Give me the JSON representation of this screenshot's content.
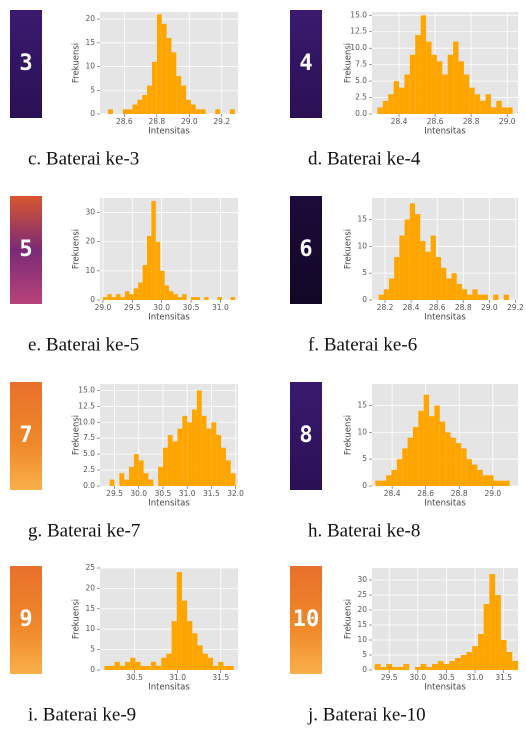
{
  "chart_data": [
    {
      "type": "histogram",
      "caption": "c. Baterai ke-3",
      "image_label": "3",
      "xlabel": "Intensitas",
      "ylabel": "Frekuensi",
      "color": "#ffa500",
      "grid": true,
      "xlim": [
        28.45,
        29.3
      ],
      "xticks": [
        28.6,
        28.8,
        {
          "value": 29.0,
          "label": "29.0"
        },
        29.2
      ],
      "ylim": [
        0,
        21.5
      ],
      "yticks": [
        0,
        5,
        10,
        15,
        20
      ],
      "bins": [
        28.5,
        28.53,
        28.56,
        28.59,
        28.62,
        28.65,
        28.68,
        28.71,
        28.74,
        28.77,
        28.8,
        28.83,
        28.86,
        28.89,
        28.92,
        28.95,
        28.98,
        29.01,
        29.04,
        29.07,
        29.1,
        29.13,
        29.16,
        29.19,
        29.22,
        29.25,
        29.28
      ],
      "values": [
        1,
        0,
        0,
        1,
        1,
        2,
        3,
        4,
        6,
        11,
        21,
        19,
        16,
        13,
        8,
        6,
        3,
        2,
        1,
        1,
        0,
        0,
        1,
        0,
        0,
        1
      ]
    },
    {
      "type": "histogram",
      "caption": "d. Baterai ke-4",
      "image_label": "4",
      "xlabel": "Intensitas",
      "ylabel": "Frekuensi",
      "color": "#ffa500",
      "grid": true,
      "xlim": [
        28.25,
        29.06
      ],
      "xticks": [
        28.4,
        28.6,
        28.8,
        {
          "value": 29.0,
          "label": "29.0"
        }
      ],
      "ylim": [
        0,
        15.5
      ],
      "yticks": [
        {
          "value": 0,
          "label": "0.0"
        },
        2.5,
        {
          "value": 5,
          "label": "5.0"
        },
        7.5,
        {
          "value": 10,
          "label": "10.0"
        },
        12.5,
        {
          "value": 15,
          "label": "15.0"
        }
      ],
      "bins": [
        28.28,
        28.31,
        28.34,
        28.37,
        28.4,
        28.43,
        28.46,
        28.49,
        28.52,
        28.55,
        28.58,
        28.61,
        28.64,
        28.67,
        28.7,
        28.73,
        28.76,
        28.79,
        28.82,
        28.85,
        28.88,
        28.91,
        28.94,
        28.97,
        29.0,
        29.03
      ],
      "values": [
        1,
        2,
        3,
        5,
        4,
        6,
        9,
        12,
        15,
        11,
        9,
        8,
        6,
        9,
        11,
        8,
        6,
        4,
        3,
        2,
        3,
        1,
        2,
        1,
        1
      ]
    },
    {
      "type": "histogram",
      "caption": "e. Baterai ke-5",
      "image_label": "5",
      "xlabel": "Intensitas",
      "ylabel": "Frekuensi",
      "color": "#ffa500",
      "grid": true,
      "xlim": [
        28.95,
        31.3
      ],
      "xticks": [
        {
          "value": 29.0,
          "label": "29.0"
        },
        29.5,
        {
          "value": 30.0,
          "label": "30.0"
        },
        30.5,
        {
          "value": 31.0,
          "label": "31.0"
        }
      ],
      "ylim": [
        0,
        35
      ],
      "yticks": [
        0,
        10,
        20,
        30
      ],
      "bins": [
        29.0,
        29.075,
        29.15,
        29.225,
        29.3,
        29.375,
        29.45,
        29.525,
        29.6,
        29.675,
        29.75,
        29.825,
        29.9,
        29.975,
        30.05,
        30.125,
        30.2,
        30.275,
        30.35,
        30.425,
        30.5,
        30.575,
        30.65,
        30.725,
        30.8,
        30.875,
        30.95,
        31.025,
        31.1,
        31.175,
        31.25
      ],
      "values": [
        1,
        2,
        1,
        2,
        1,
        3,
        2,
        4,
        6,
        12,
        22,
        34,
        20,
        10,
        5,
        3,
        2,
        1,
        2,
        0,
        1,
        1,
        0,
        1,
        0,
        0,
        1,
        0,
        0,
        1
      ]
    },
    {
      "type": "histogram",
      "caption": "f. Baterai ke-6",
      "image_label": "6",
      "xlabel": "Intensitas",
      "ylabel": "Frekuensi",
      "color": "#ffa500",
      "grid": true,
      "xlim": [
        28.1,
        29.22
      ],
      "xticks": [
        28.2,
        28.4,
        28.6,
        28.8,
        {
          "value": 29.0,
          "label": "29.0"
        },
        29.2
      ],
      "ylim": [
        0,
        19
      ],
      "yticks": [
        0,
        5,
        10,
        15
      ],
      "bins": [
        28.15,
        28.19,
        28.23,
        28.27,
        28.31,
        28.35,
        28.39,
        28.43,
        28.47,
        28.51,
        28.55,
        28.59,
        28.63,
        28.67,
        28.71,
        28.75,
        28.79,
        28.83,
        28.87,
        28.91,
        28.95,
        28.99,
        29.03,
        29.07,
        29.11,
        29.15
      ],
      "values": [
        1,
        2,
        4,
        8,
        12,
        15,
        18,
        16,
        11,
        9,
        12,
        8,
        6,
        4,
        5,
        3,
        2,
        1,
        2,
        1,
        1,
        0,
        1,
        0,
        1
      ]
    },
    {
      "type": "histogram",
      "caption": "g. Baterai ke-7",
      "image_label": "7",
      "xlabel": "Intensitas",
      "ylabel": "Frekuensi",
      "color": "#ffa500",
      "grid": true,
      "xlim": [
        29.2,
        32.05
      ],
      "xticks": [
        29.5,
        {
          "value": 30.0,
          "label": "30.0"
        },
        30.5,
        {
          "value": 31.0,
          "label": "31.0"
        },
        31.5,
        {
          "value": 32.0,
          "label": "32.0"
        }
      ],
      "ylim": [
        0,
        16
      ],
      "yticks": [
        {
          "value": 0,
          "label": "0.0"
        },
        2.5,
        {
          "value": 5,
          "label": "5.0"
        },
        7.5,
        {
          "value": 10,
          "label": "10.0"
        },
        12.5,
        {
          "value": 15,
          "label": "15.0"
        }
      ],
      "bins": [
        29.4,
        29.5,
        29.6,
        29.7,
        29.8,
        29.9,
        30.0,
        30.1,
        30.2,
        30.3,
        30.4,
        30.5,
        30.6,
        30.7,
        30.8,
        30.9,
        31.0,
        31.1,
        31.2,
        31.3,
        31.4,
        31.5,
        31.6,
        31.7,
        31.8,
        31.9,
        32.0
      ],
      "values": [
        1,
        0,
        2,
        1,
        3,
        5,
        4,
        2,
        1,
        0,
        3,
        6,
        8,
        7,
        9,
        11,
        10,
        12,
        15,
        11,
        9,
        10,
        8,
        6,
        4,
        2
      ]
    },
    {
      "type": "histogram",
      "caption": "h. Baterai ke-8",
      "image_label": "8",
      "xlabel": "Intensitas",
      "ylabel": "Frekuensi",
      "color": "#ffa500",
      "grid": true,
      "xlim": [
        28.28,
        29.15
      ],
      "xticks": [
        28.4,
        28.6,
        28.8,
        {
          "value": 29.0,
          "label": "29.0"
        }
      ],
      "ylim": [
        0,
        19
      ],
      "yticks": [
        0,
        5,
        10,
        15
      ],
      "bins": [
        28.3,
        28.332,
        28.364,
        28.396,
        28.428,
        28.46,
        28.492,
        28.524,
        28.556,
        28.588,
        28.62,
        28.652,
        28.684,
        28.716,
        28.748,
        28.78,
        28.812,
        28.844,
        28.876,
        28.908,
        28.94,
        28.972,
        29.004,
        29.036,
        29.068,
        29.1
      ],
      "values": [
        1,
        1,
        2,
        3,
        5,
        7,
        9,
        11,
        14,
        17,
        13,
        15,
        12,
        10,
        9,
        8,
        7,
        5,
        4,
        3,
        2,
        2,
        1,
        1,
        1
      ]
    },
    {
      "type": "histogram",
      "caption": "i. Baterai ke-9",
      "image_label": "9",
      "xlabel": "Intensitas",
      "ylabel": "Frekuensi",
      "color": "#ffa500",
      "grid": true,
      "xlim": [
        30.1,
        31.7
      ],
      "xticks": [
        30.5,
        {
          "value": 31.0,
          "label": "31.0"
        },
        31.5
      ],
      "ylim": [
        0,
        25
      ],
      "yticks": [
        0,
        5,
        10,
        15,
        20,
        25
      ],
      "bins": [
        30.15,
        30.21,
        30.27,
        30.33,
        30.39,
        30.45,
        30.51,
        30.57,
        30.63,
        30.69,
        30.75,
        30.81,
        30.87,
        30.93,
        30.99,
        31.05,
        31.11,
        31.17,
        31.23,
        31.29,
        31.35,
        31.41,
        31.47,
        31.53,
        31.59,
        31.65
      ],
      "values": [
        1,
        1,
        2,
        1,
        2,
        3,
        2,
        1,
        1,
        2,
        1,
        3,
        4,
        12,
        24,
        17,
        12,
        9,
        6,
        4,
        3,
        1,
        2,
        1,
        1
      ]
    },
    {
      "type": "histogram",
      "caption": "j. Baterai ke-10",
      "image_label": "10",
      "xlabel": "Intensitas",
      "ylabel": "Frekuensi",
      "color": "#ffa500",
      "grid": true,
      "xlim": [
        29.2,
        31.75
      ],
      "xticks": [
        29.5,
        {
          "value": 30.0,
          "label": "30.0"
        },
        30.5,
        {
          "value": 31.0,
          "label": "31.0"
        },
        31.5
      ],
      "ylim": [
        0,
        34
      ],
      "yticks": [
        0,
        5,
        10,
        15,
        20,
        25,
        30
      ],
      "bins": [
        29.25,
        29.35,
        29.45,
        29.55,
        29.65,
        29.75,
        29.85,
        29.95,
        30.05,
        30.15,
        30.25,
        30.35,
        30.45,
        30.55,
        30.65,
        30.75,
        30.85,
        30.95,
        31.05,
        31.15,
        31.25,
        31.35,
        31.45,
        31.55,
        31.65,
        31.75
      ],
      "values": [
        2,
        1,
        2,
        1,
        1,
        2,
        0,
        1,
        2,
        1,
        2,
        3,
        2,
        3,
        4,
        5,
        6,
        8,
        12,
        22,
        32,
        25,
        10,
        6,
        3
      ]
    }
  ]
}
